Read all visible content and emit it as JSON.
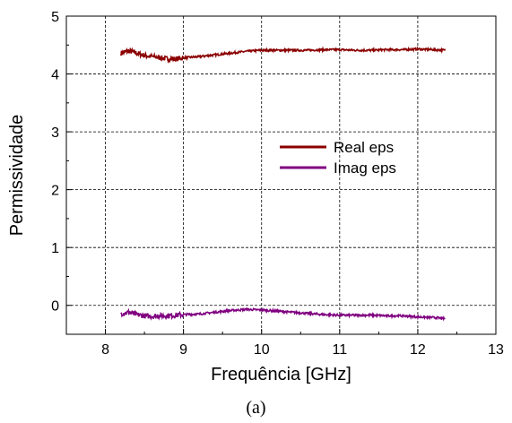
{
  "caption": "(a)",
  "chart_data": {
    "type": "line",
    "title": "",
    "xlabel": "Frequência [GHz]",
    "ylabel": "Permissividade",
    "xlim": [
      7.5,
      13
    ],
    "ylim": [
      -0.5,
      5
    ],
    "xticks": [
      8,
      9,
      10,
      11,
      12,
      13
    ],
    "yticks": [
      0,
      1,
      2,
      3,
      4,
      5
    ],
    "grid": true,
    "legend_position": "center-right",
    "series": [
      {
        "name": "Real eps",
        "color": "#8b0000",
        "x": [
          8.2,
          8.3,
          8.4,
          8.5,
          8.6,
          8.7,
          8.8,
          8.9,
          9.0,
          9.2,
          9.4,
          9.6,
          9.8,
          10.0,
          10.2,
          10.4,
          10.6,
          10.8,
          11.0,
          11.2,
          11.4,
          11.6,
          11.8,
          12.0,
          12.2,
          12.35
        ],
        "y": [
          4.36,
          4.4,
          4.36,
          4.32,
          4.3,
          4.28,
          4.26,
          4.26,
          4.28,
          4.3,
          4.33,
          4.36,
          4.39,
          4.41,
          4.41,
          4.41,
          4.41,
          4.42,
          4.42,
          4.41,
          4.41,
          4.42,
          4.42,
          4.43,
          4.42,
          4.41
        ]
      },
      {
        "name": "Imag eps",
        "color": "#800080",
        "x": [
          8.2,
          8.3,
          8.4,
          8.5,
          8.6,
          8.7,
          8.8,
          8.9,
          9.0,
          9.2,
          9.4,
          9.6,
          9.8,
          10.0,
          10.2,
          10.4,
          10.6,
          10.8,
          11.0,
          11.2,
          11.4,
          11.6,
          11.8,
          12.0,
          12.2,
          12.35
        ],
        "y": [
          -0.14,
          -0.12,
          -0.16,
          -0.18,
          -0.19,
          -0.18,
          -0.18,
          -0.17,
          -0.16,
          -0.15,
          -0.12,
          -0.09,
          -0.07,
          -0.08,
          -0.1,
          -0.12,
          -0.14,
          -0.16,
          -0.17,
          -0.17,
          -0.17,
          -0.18,
          -0.18,
          -0.2,
          -0.21,
          -0.23
        ]
      }
    ]
  }
}
